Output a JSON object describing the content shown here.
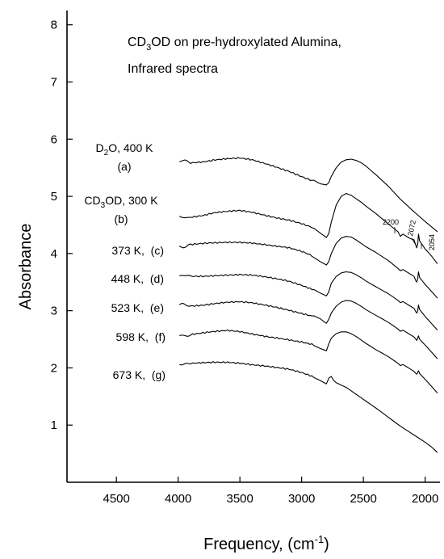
{
  "chart_data": {
    "type": "line",
    "title_line1_pre": "CD",
    "title_line1_sub": "3",
    "title_line1_post": "OD on pre-hydroxylated Alumina,",
    "title_line2": "Infrared spectra",
    "xlabel_pre": "Frequency, (cm",
    "xlabel_sup": "-1",
    "xlabel_post": ")",
    "ylabel": "Absorbance",
    "x_reversed": true,
    "xlim": [
      4900,
      1880
    ],
    "ylim": [
      0,
      8.25
    ],
    "x_ticks": [
      "4500",
      "4000",
      "3500",
      "3000",
      "2500",
      "2000"
    ],
    "x_tick_values": [
      4500,
      4000,
      3500,
      3000,
      2500,
      2000
    ],
    "y_ticks": [
      "1",
      "2",
      "3",
      "4",
      "5",
      "6",
      "7",
      "8"
    ],
    "y_tick_values": [
      1,
      2,
      3,
      4,
      5,
      6,
      7,
      8
    ],
    "peak_annotations": [
      {
        "text": "2200",
        "x": 2200
      },
      {
        "text": "2072",
        "x": 2072
      },
      {
        "text": "2054",
        "x": 2054
      }
    ],
    "series": [
      {
        "name": "D2O, 400 K (a)",
        "label_line1_pre": "D",
        "label_line1_sub": "2",
        "label_line1_post": "O, 400 K",
        "label_line2": "(a)",
        "x": [
          3990,
          3900,
          3800,
          3700,
          3600,
          3500,
          3400,
          3300,
          3200,
          3100,
          3000,
          2900,
          2850,
          2800,
          2780,
          2760,
          2720,
          2680,
          2640,
          2600,
          2560,
          2520,
          2480,
          2400,
          2300,
          2200,
          2100,
          2000,
          1900
        ],
        "y": [
          5.62,
          5.6,
          5.62,
          5.65,
          5.66,
          5.66,
          5.62,
          5.56,
          5.5,
          5.44,
          5.36,
          5.28,
          5.22,
          5.2,
          5.24,
          5.35,
          5.5,
          5.6,
          5.64,
          5.65,
          5.63,
          5.59,
          5.53,
          5.38,
          5.18,
          4.95,
          4.75,
          4.56,
          4.38
        ]
      },
      {
        "name": "CD3OD, 300 K (b)",
        "label_line1_pre": "CD",
        "label_line1_sub": "3",
        "label_line1_post": "OD, 300 K",
        "label_line2": "(b)",
        "x": [
          3990,
          3900,
          3800,
          3700,
          3600,
          3500,
          3400,
          3300,
          3200,
          3100,
          3000,
          2900,
          2850,
          2800,
          2780,
          2760,
          2720,
          2680,
          2640,
          2600,
          2560,
          2520,
          2480,
          2400,
          2300,
          2220,
          2200,
          2180,
          2120,
          2090,
          2075,
          2068,
          2060,
          2054,
          2045,
          2000,
          1950,
          1900
        ],
        "y": [
          4.63,
          4.64,
          4.66,
          4.7,
          4.72,
          4.74,
          4.72,
          4.68,
          4.64,
          4.6,
          4.53,
          4.44,
          4.36,
          4.28,
          4.35,
          4.55,
          4.85,
          5.0,
          5.05,
          5.02,
          4.96,
          4.9,
          4.83,
          4.7,
          4.52,
          4.38,
          4.3,
          4.34,
          4.26,
          4.24,
          4.14,
          4.1,
          4.17,
          4.34,
          4.22,
          4.08,
          3.96,
          3.82
        ]
      },
      {
        "name": "373 K, (c)",
        "label_line1_pre": "373 K,  (c)",
        "x": [
          3990,
          3900,
          3800,
          3700,
          3600,
          3500,
          3400,
          3300,
          3200,
          3100,
          3000,
          2900,
          2850,
          2800,
          2780,
          2760,
          2720,
          2680,
          2640,
          2600,
          2560,
          2520,
          2480,
          2400,
          2300,
          2220,
          2200,
          2180,
          2120,
          2090,
          2075,
          2068,
          2060,
          2054,
          2045,
          2000,
          1950,
          1900
        ],
        "y": [
          4.12,
          4.14,
          4.16,
          4.18,
          4.2,
          4.21,
          4.2,
          4.17,
          4.13,
          4.09,
          4.02,
          3.93,
          3.86,
          3.8,
          3.86,
          4.0,
          4.18,
          4.27,
          4.3,
          4.29,
          4.24,
          4.18,
          4.12,
          4.02,
          3.88,
          3.74,
          3.7,
          3.72,
          3.64,
          3.6,
          3.52,
          3.5,
          3.56,
          3.68,
          3.58,
          3.46,
          3.34,
          3.22
        ]
      },
      {
        "name": "448 K, (d)",
        "label_line1_pre": "448 K,  (d)",
        "x": [
          3990,
          3900,
          3800,
          3700,
          3600,
          3500,
          3400,
          3300,
          3200,
          3100,
          3000,
          2900,
          2850,
          2800,
          2780,
          2760,
          2720,
          2680,
          2640,
          2600,
          2560,
          2520,
          2480,
          2400,
          2300,
          2220,
          2200,
          2180,
          2120,
          2090,
          2075,
          2068,
          2060,
          2054,
          2045,
          2000,
          1950,
          1900
        ],
        "y": [
          3.62,
          3.6,
          3.61,
          3.63,
          3.64,
          3.64,
          3.62,
          3.58,
          3.54,
          3.5,
          3.44,
          3.37,
          3.31,
          3.26,
          3.33,
          3.48,
          3.6,
          3.66,
          3.68,
          3.67,
          3.63,
          3.58,
          3.52,
          3.42,
          3.3,
          3.18,
          3.14,
          3.16,
          3.08,
          3.04,
          2.98,
          2.96,
          3.0,
          3.1,
          3.02,
          2.9,
          2.78,
          2.66
        ]
      },
      {
        "name": "523 K, (e)",
        "label_line1_pre": "523 K,  (e)",
        "x": [
          3990,
          3900,
          3800,
          3700,
          3600,
          3500,
          3400,
          3300,
          3200,
          3100,
          3000,
          2900,
          2850,
          2800,
          2780,
          2760,
          2720,
          2680,
          2640,
          2600,
          2560,
          2520,
          2480,
          2400,
          2300,
          2220,
          2200,
          2180,
          2120,
          2090,
          2075,
          2068,
          2060,
          2054,
          2045,
          2000,
          1950,
          1900
        ],
        "y": [
          3.1,
          3.1,
          3.11,
          3.13,
          3.14,
          3.14,
          3.12,
          3.09,
          3.06,
          3.02,
          2.97,
          2.91,
          2.86,
          2.78,
          2.85,
          2.96,
          3.08,
          3.15,
          3.18,
          3.17,
          3.13,
          3.08,
          3.02,
          2.92,
          2.8,
          2.68,
          2.64,
          2.66,
          2.58,
          2.54,
          2.5,
          2.48,
          2.52,
          2.56,
          2.5,
          2.4,
          2.28,
          2.16
        ]
      },
      {
        "name": "598 K, (f)",
        "label_line1_pre": "598 K,  (f)",
        "x": [
          3990,
          3900,
          3800,
          3700,
          3600,
          3500,
          3400,
          3300,
          3200,
          3100,
          3000,
          2900,
          2850,
          2800,
          2780,
          2760,
          2720,
          2680,
          2640,
          2600,
          2560,
          2520,
          2480,
          2400,
          2300,
          2220,
          2200,
          2180,
          2120,
          2090,
          2075,
          2068,
          2060,
          2054,
          2045,
          2000,
          1950,
          1900
        ],
        "y": [
          2.56,
          2.58,
          2.6,
          2.62,
          2.64,
          2.63,
          2.6,
          2.57,
          2.54,
          2.5,
          2.45,
          2.39,
          2.34,
          2.3,
          2.42,
          2.52,
          2.6,
          2.63,
          2.63,
          2.6,
          2.55,
          2.49,
          2.43,
          2.32,
          2.2,
          2.08,
          2.04,
          2.06,
          1.98,
          1.94,
          1.9,
          1.89,
          1.92,
          1.95,
          1.9,
          1.8,
          1.68,
          1.56
        ]
      },
      {
        "name": "673 K, (g)",
        "label_line1_pre": "673 K,  (g)",
        "x": [
          3990,
          3900,
          3800,
          3700,
          3600,
          3500,
          3400,
          3300,
          3200,
          3100,
          3000,
          2900,
          2850,
          2800,
          2780,
          2760,
          2740,
          2720,
          2680,
          2640,
          2600,
          2560,
          2520,
          2480,
          2400,
          2300,
          2200,
          2100,
          2000,
          1950,
          1900
        ],
        "y": [
          2.08,
          2.06,
          2.08,
          2.1,
          2.11,
          2.1,
          2.07,
          2.04,
          2.0,
          1.96,
          1.9,
          1.83,
          1.78,
          1.72,
          1.82,
          1.85,
          1.78,
          1.74,
          1.7,
          1.66,
          1.6,
          1.54,
          1.48,
          1.42,
          1.3,
          1.14,
          0.98,
          0.84,
          0.7,
          0.62,
          0.52
        ]
      }
    ]
  }
}
